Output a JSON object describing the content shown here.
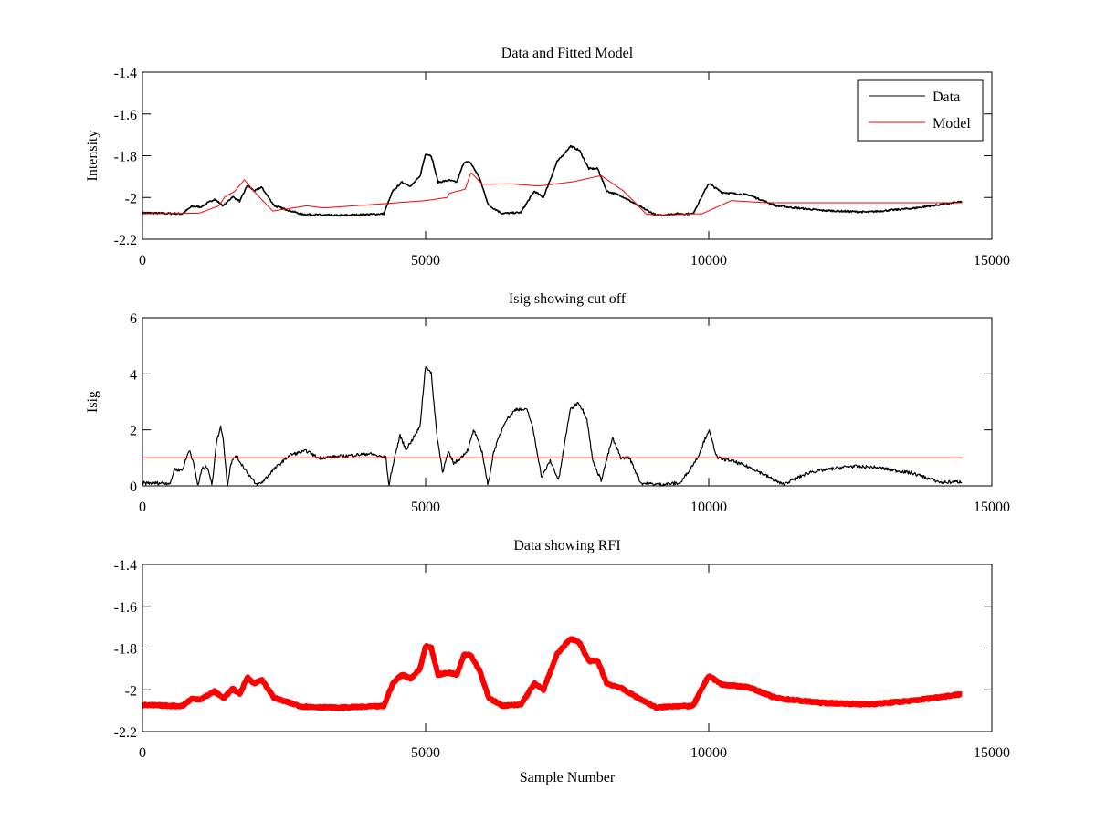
{
  "chart_data": [
    {
      "type": "line",
      "title": "Data and Fitted Model",
      "xlabel": "",
      "ylabel": "Intensity",
      "xlim": [
        0,
        15000
      ],
      "ylim": [
        -2.2,
        -1.4
      ],
      "xticks": [
        0,
        5000,
        10000,
        15000
      ],
      "xtick_labels": [
        "0",
        "5000",
        "10000",
        "15000"
      ],
      "yticks": [
        -2.2,
        -2.0,
        -1.8,
        -1.6,
        -1.4
      ],
      "ytick_labels": [
        "-2.2",
        "-2",
        "-1.8",
        "-1.6",
        "-1.4"
      ],
      "grid": false,
      "legend": {
        "position": "top-right",
        "entries": [
          "Data",
          "Model"
        ]
      },
      "series": [
        {
          "name": "Data",
          "color": "#000000",
          "x": [
            0,
            700,
            870,
            1030,
            1270,
            1430,
            1590,
            1720,
            1830,
            1850,
            1980,
            2100,
            2330,
            2810,
            3450,
            4260,
            4420,
            4580,
            4740,
            4900,
            5000,
            5100,
            5220,
            5420,
            5550,
            5680,
            5790,
            5950,
            6110,
            6350,
            6680,
            6920,
            7080,
            7320,
            7560,
            7720,
            7880,
            8040,
            8200,
            8440,
            8760,
            9080,
            9400,
            9720,
            10000,
            10230,
            10710,
            11190,
            11990,
            12800,
            13600,
            14480
          ],
          "y": [
            -2.073,
            -2.078,
            -2.043,
            -2.045,
            -2.008,
            -2.04,
            -1.996,
            -2.018,
            -1.955,
            -1.94,
            -1.97,
            -1.95,
            -2.04,
            -2.08,
            -2.086,
            -2.078,
            -1.97,
            -1.927,
            -1.945,
            -1.9,
            -1.79,
            -1.8,
            -1.927,
            -1.918,
            -1.927,
            -1.83,
            -1.832,
            -1.905,
            -2.037,
            -2.076,
            -2.072,
            -1.97,
            -2.0,
            -1.83,
            -1.754,
            -1.775,
            -1.862,
            -1.862,
            -1.97,
            -1.99,
            -2.04,
            -2.086,
            -2.078,
            -2.078,
            -1.932,
            -1.975,
            -1.988,
            -2.04,
            -2.062,
            -2.07,
            -2.052,
            -2.02
          ]
        },
        {
          "name": "Model",
          "color": "#ff0000",
          "x": [
            0,
            1000,
            1350,
            1450,
            1630,
            1800,
            2000,
            2300,
            2900,
            3200,
            4000,
            5000,
            5380,
            5420,
            5700,
            5800,
            6000,
            6500,
            7000,
            7600,
            8100,
            8500,
            8900,
            9200,
            9700,
            9880,
            10400,
            11000,
            14480
          ],
          "y": [
            -2.078,
            -2.075,
            -2.04,
            -1.998,
            -1.97,
            -1.915,
            -1.98,
            -2.065,
            -2.04,
            -2.05,
            -2.035,
            -2.015,
            -2.0,
            -1.98,
            -1.96,
            -1.88,
            -1.937,
            -1.935,
            -1.945,
            -1.925,
            -1.895,
            -1.97,
            -2.08,
            -2.085,
            -2.078,
            -2.078,
            -2.015,
            -2.025,
            -2.025
          ]
        }
      ]
    },
    {
      "type": "line",
      "title": "Isig showing cut off",
      "xlabel": "",
      "ylabel": "Isig",
      "xlim": [
        0,
        15000
      ],
      "ylim": [
        0,
        6
      ],
      "xticks": [
        0,
        5000,
        10000,
        15000
      ],
      "xtick_labels": [
        "0",
        "5000",
        "10000",
        "15000"
      ],
      "yticks": [
        0,
        2,
        4,
        6
      ],
      "ytick_labels": [
        "0",
        "2",
        "4",
        "6"
      ],
      "grid": false,
      "series": [
        {
          "name": "Isig",
          "color": "#000000",
          "x": [
            0,
            500,
            560,
            700,
            830,
            890,
            980,
            1050,
            1150,
            1230,
            1300,
            1380,
            1420,
            1500,
            1560,
            1650,
            1740,
            1900,
            2000,
            2100,
            2300,
            2600,
            2900,
            3100,
            3500,
            4000,
            4300,
            4350,
            4450,
            4550,
            4650,
            4750,
            4900,
            5000,
            5100,
            5200,
            5300,
            5400,
            5500,
            5620,
            5750,
            5850,
            6000,
            6100,
            6200,
            6400,
            6600,
            6800,
            6900,
            7050,
            7200,
            7350,
            7550,
            7700,
            7850,
            7950,
            8100,
            8300,
            8450,
            8600,
            8800,
            9100,
            9500,
            9800,
            10000,
            10150,
            10400,
            10800,
            11300,
            11800,
            12500,
            13000,
            13600,
            14100,
            14480
          ],
          "y": [
            0.1,
            0.1,
            0.6,
            0.55,
            1.3,
            0.9,
            0.0,
            0.6,
            0.7,
            0.0,
            1.5,
            2.1,
            1.8,
            0.0,
            0.8,
            1.1,
            0.8,
            0.35,
            0.05,
            0.1,
            0.55,
            1.1,
            1.25,
            1.0,
            1.05,
            1.15,
            1.0,
            0.0,
            1.0,
            1.8,
            1.3,
            1.6,
            2.1,
            4.3,
            4.0,
            1.8,
            0.5,
            1.2,
            0.8,
            1.0,
            1.3,
            2.0,
            1.2,
            0.0,
            1.2,
            2.3,
            2.75,
            2.7,
            2.0,
            0.3,
            0.9,
            0.2,
            2.7,
            3.0,
            2.4,
            0.9,
            0.2,
            1.7,
            1.0,
            1.0,
            0.1,
            0.05,
            0.1,
            1.0,
            2.0,
            1.0,
            0.9,
            0.6,
            0.05,
            0.5,
            0.7,
            0.65,
            0.45,
            0.12,
            0.15
          ]
        },
        {
          "name": "Cut off",
          "color": "#ff0000",
          "x": [
            0,
            14480
          ],
          "y": [
            1.0,
            1.0
          ]
        }
      ]
    },
    {
      "type": "line",
      "title": "Data showing RFI",
      "xlabel": "Sample Number",
      "ylabel": "",
      "xlim": [
        0,
        15000
      ],
      "ylim": [
        -2.2,
        -1.4
      ],
      "xticks": [
        0,
        5000,
        10000,
        15000
      ],
      "xtick_labels": [
        "0",
        "5000",
        "10000",
        "15000"
      ],
      "yticks": [
        -2.2,
        -2.0,
        -1.8,
        -1.6,
        -1.4
      ],
      "ytick_labels": [
        "-2.2",
        "-2",
        "-1.8",
        "-1.6",
        "-1.4"
      ],
      "grid": false,
      "series": [
        {
          "name": "Data",
          "color": "#ff0000",
          "x": [
            0,
            700,
            870,
            1030,
            1270,
            1430,
            1590,
            1720,
            1830,
            1850,
            1980,
            2100,
            2330,
            2810,
            3450,
            4260,
            4420,
            4580,
            4740,
            4900,
            5000,
            5100,
            5220,
            5420,
            5550,
            5680,
            5790,
            5950,
            6110,
            6350,
            6680,
            6920,
            7080,
            7320,
            7560,
            7720,
            7880,
            8040,
            8200,
            8440,
            8760,
            9080,
            9400,
            9720,
            10000,
            10230,
            10710,
            11190,
            11990,
            12800,
            13600,
            14480
          ],
          "y": [
            -2.073,
            -2.078,
            -2.043,
            -2.045,
            -2.008,
            -2.04,
            -1.996,
            -2.018,
            -1.955,
            -1.94,
            -1.97,
            -1.95,
            -2.04,
            -2.08,
            -2.086,
            -2.078,
            -1.97,
            -1.927,
            -1.945,
            -1.9,
            -1.79,
            -1.8,
            -1.927,
            -1.918,
            -1.927,
            -1.83,
            -1.832,
            -1.905,
            -2.037,
            -2.076,
            -2.072,
            -1.97,
            -2.0,
            -1.83,
            -1.754,
            -1.775,
            -1.862,
            -1.862,
            -1.97,
            -1.99,
            -2.04,
            -2.086,
            -2.078,
            -2.078,
            -1.932,
            -1.975,
            -1.988,
            -2.04,
            -2.062,
            -2.07,
            -2.052,
            -2.02
          ]
        }
      ]
    }
  ]
}
